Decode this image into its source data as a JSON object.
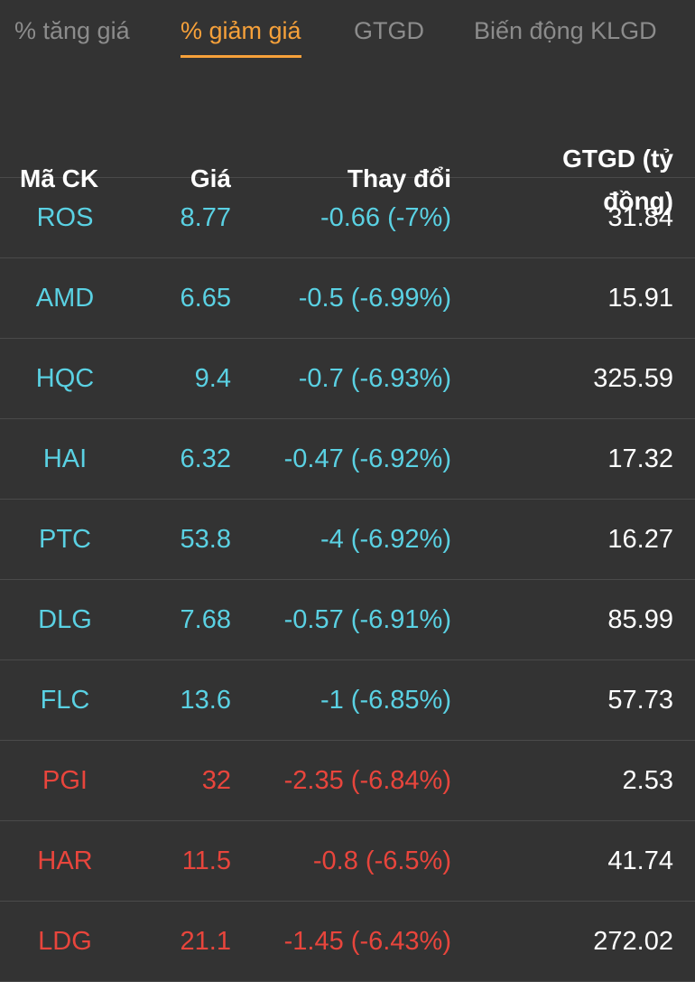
{
  "colors": {
    "background": "#333333",
    "active_tab": "#f7a13a",
    "inactive_tab": "#8c8c8c",
    "floor_down": "#5ad1e3",
    "down": "#e8453c",
    "value": "#ffffff",
    "divider": "#4a4a4a"
  },
  "tabs": [
    {
      "label": "% tăng giá",
      "active": false
    },
    {
      "label": "% giảm giá",
      "active": true
    },
    {
      "label": "GTGD",
      "active": false
    },
    {
      "label": "Biến động KLGD",
      "active": false
    }
  ],
  "table": {
    "columns": {
      "symbol": "Mã CK",
      "price": "Giá",
      "change": "Thay đổi",
      "value_line1": "GTGD (tỷ",
      "value_line2": "đồng)"
    },
    "rows": [
      {
        "symbol": "ROS",
        "price": "8.77",
        "change": "-0.66 (-7%)",
        "value": "31.84",
        "color": "floor_down"
      },
      {
        "symbol": "AMD",
        "price": "6.65",
        "change": "-0.5 (-6.99%)",
        "value": "15.91",
        "color": "floor_down"
      },
      {
        "symbol": "HQC",
        "price": "9.4",
        "change": "-0.7 (-6.93%)",
        "value": "325.59",
        "color": "floor_down"
      },
      {
        "symbol": "HAI",
        "price": "6.32",
        "change": "-0.47 (-6.92%)",
        "value": "17.32",
        "color": "floor_down"
      },
      {
        "symbol": "PTC",
        "price": "53.8",
        "change": "-4 (-6.92%)",
        "value": "16.27",
        "color": "floor_down"
      },
      {
        "symbol": "DLG",
        "price": "7.68",
        "change": "-0.57 (-6.91%)",
        "value": "85.99",
        "color": "floor_down"
      },
      {
        "symbol": "FLC",
        "price": "13.6",
        "change": "-1 (-6.85%)",
        "value": "57.73",
        "color": "floor_down"
      },
      {
        "symbol": "PGI",
        "price": "32",
        "change": "-2.35 (-6.84%)",
        "value": "2.53",
        "color": "down"
      },
      {
        "symbol": "HAR",
        "price": "11.5",
        "change": "-0.8 (-6.5%)",
        "value": "41.74",
        "color": "down"
      },
      {
        "symbol": "LDG",
        "price": "21.1",
        "change": "-1.45 (-6.43%)",
        "value": "272.02",
        "color": "down"
      }
    ]
  }
}
